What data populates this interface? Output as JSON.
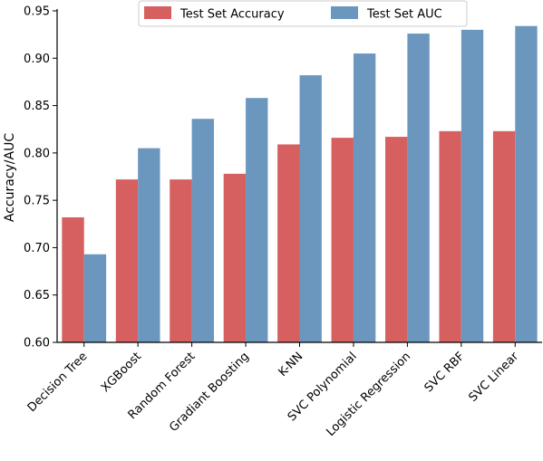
{
  "chart_data": {
    "type": "bar",
    "title": "",
    "xlabel": "",
    "ylabel": "Accuracy/AUC",
    "ylim": [
      0.6,
      0.95
    ],
    "yticks": [
      "0.60",
      "0.65",
      "0.70",
      "0.75",
      "0.80",
      "0.85",
      "0.90",
      "0.95"
    ],
    "categories": [
      "Decision Tree",
      "XGBoost",
      "Random Forest",
      "Gradiant Boosting",
      "K-NN",
      "SVC Polynomial",
      "Logistic Regression",
      "SVC RBF",
      "SVC Linear"
    ],
    "series": [
      {
        "name": "Test Set Accuracy",
        "color": "#d65f5f",
        "values": [
          0.732,
          0.772,
          0.772,
          0.778,
          0.809,
          0.816,
          0.817,
          0.823,
          0.823
        ]
      },
      {
        "name": "Test Set AUC",
        "color": "#6b97bf",
        "values": [
          0.693,
          0.805,
          0.836,
          0.858,
          0.882,
          0.905,
          0.926,
          0.93,
          0.934
        ]
      }
    ],
    "legend": "top-center",
    "grid": false
  }
}
